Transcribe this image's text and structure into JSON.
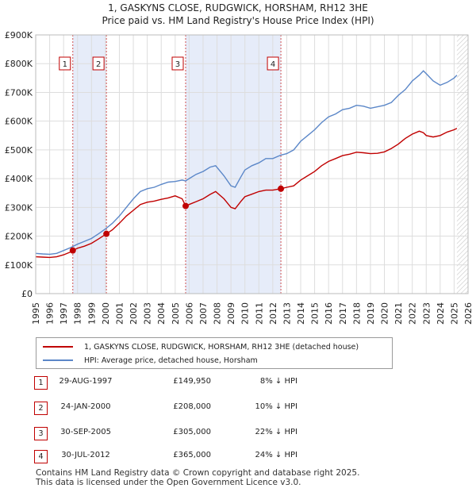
{
  "header": {
    "title_line1": "1, GASKYNS CLOSE, RUDGWICK, HORSHAM, RH12 3HE",
    "title_line2": "Price paid vs. HM Land Registry's House Price Index (HPI)"
  },
  "colors": {
    "price_paid": "#c00000",
    "hpi": "#5b87c8",
    "band": "#e6ecf9",
    "grid": "#dddddd"
  },
  "chart_data": {
    "type": "line",
    "title": "Price paid vs. HM Land Registry's House Price Index (HPI)",
    "xlabel": "",
    "ylabel": "",
    "xlim": [
      1995,
      2026
    ],
    "ylim": [
      0,
      900000
    ],
    "y_ticks": [
      {
        "value": 0,
        "label": "£0"
      },
      {
        "value": 100000,
        "label": "£100K"
      },
      {
        "value": 200000,
        "label": "£200K"
      },
      {
        "value": 300000,
        "label": "£300K"
      },
      {
        "value": 400000,
        "label": "£400K"
      },
      {
        "value": 500000,
        "label": "£500K"
      },
      {
        "value": 600000,
        "label": "£600K"
      },
      {
        "value": 700000,
        "label": "£700K"
      },
      {
        "value": 800000,
        "label": "£800K"
      },
      {
        "value": 900000,
        "label": "£900K"
      }
    ],
    "x_ticks": [
      "1995",
      "1996",
      "1997",
      "1998",
      "1999",
      "2000",
      "2001",
      "2002",
      "2003",
      "2004",
      "2005",
      "2006",
      "2007",
      "2008",
      "2009",
      "2010",
      "2011",
      "2012",
      "2013",
      "2014",
      "2015",
      "2016",
      "2017",
      "2018",
      "2019",
      "2020",
      "2021",
      "2022",
      "2023",
      "2024",
      "2025",
      "2026"
    ],
    "grid": true,
    "shaded_periods": [
      [
        1997.66,
        2000.07
      ],
      [
        2005.75,
        2012.58
      ]
    ],
    "future_hatch_from": 2025.2,
    "series": [
      {
        "name": "HPI: Average price, detached house, Horsham",
        "color": "#5b87c8",
        "x": [
          1995.0,
          1995.5,
          1996.0,
          1996.5,
          1997.0,
          1997.5,
          1998.0,
          1998.5,
          1999.0,
          1999.5,
          2000.0,
          2000.5,
          2001.0,
          2001.5,
          2002.0,
          2002.5,
          2003.0,
          2003.5,
          2004.0,
          2004.5,
          2005.0,
          2005.5,
          2005.75,
          2006.0,
          2006.5,
          2007.0,
          2007.5,
          2007.9,
          2008.5,
          2009.0,
          2009.3,
          2009.7,
          2010.0,
          2010.5,
          2011.0,
          2011.5,
          2012.0,
          2012.58,
          2013.0,
          2013.5,
          2014.0,
          2014.5,
          2015.0,
          2015.5,
          2016.0,
          2016.5,
          2017.0,
          2017.5,
          2018.0,
          2018.5,
          2019.0,
          2019.5,
          2020.0,
          2020.5,
          2021.0,
          2021.5,
          2022.0,
          2022.5,
          2022.8,
          2023.0,
          2023.5,
          2024.0,
          2024.5,
          2025.0,
          2025.2
        ],
        "values": [
          140000,
          138000,
          137000,
          140000,
          150000,
          160000,
          172000,
          182000,
          192000,
          208000,
          225000,
          245000,
          270000,
          300000,
          330000,
          355000,
          365000,
          370000,
          380000,
          388000,
          390000,
          395000,
          392000,
          400000,
          415000,
          425000,
          440000,
          445000,
          410000,
          375000,
          370000,
          405000,
          430000,
          445000,
          455000,
          470000,
          470000,
          482000,
          487000,
          500000,
          530000,
          550000,
          570000,
          595000,
          615000,
          625000,
          640000,
          645000,
          655000,
          652000,
          645000,
          650000,
          655000,
          665000,
          690000,
          710000,
          740000,
          760000,
          775000,
          765000,
          740000,
          725000,
          735000,
          750000,
          760000
        ]
      },
      {
        "name": "1, GASKYNS CLOSE, RUDGWICK, HORSHAM, RH12 3HE (detached house)",
        "color": "#c00000",
        "x": [
          1995.0,
          1995.5,
          1996.0,
          1996.5,
          1997.0,
          1997.5,
          1997.66,
          1998.0,
          1998.5,
          1999.0,
          1999.5,
          2000.07,
          2000.5,
          2001.0,
          2001.5,
          2002.0,
          2002.5,
          2003.0,
          2003.5,
          2004.0,
          2004.5,
          2005.0,
          2005.5,
          2005.75,
          2006.0,
          2006.5,
          2007.0,
          2007.5,
          2007.9,
          2008.5,
          2009.0,
          2009.3,
          2009.7,
          2010.0,
          2010.5,
          2011.0,
          2011.5,
          2012.0,
          2012.58,
          2013.0,
          2013.5,
          2014.0,
          2014.5,
          2015.0,
          2015.5,
          2016.0,
          2016.5,
          2017.0,
          2017.5,
          2018.0,
          2018.5,
          2019.0,
          2019.5,
          2020.0,
          2020.5,
          2021.0,
          2021.5,
          2022.0,
          2022.5,
          2022.8,
          2023.0,
          2023.5,
          2024.0,
          2024.5,
          2025.0,
          2025.2
        ],
        "values": [
          128000,
          127000,
          126000,
          128000,
          135000,
          145000,
          149950,
          158000,
          165000,
          175000,
          190000,
          208000,
          222000,
          245000,
          270000,
          290000,
          310000,
          318000,
          322000,
          328000,
          333000,
          340000,
          330000,
          305000,
          310000,
          320000,
          330000,
          345000,
          355000,
          330000,
          300000,
          295000,
          320000,
          337000,
          346000,
          355000,
          360000,
          360000,
          365000,
          370000,
          375000,
          395000,
          410000,
          425000,
          445000,
          460000,
          470000,
          480000,
          485000,
          492000,
          490000,
          487000,
          488000,
          493000,
          505000,
          520000,
          540000,
          555000,
          565000,
          560000,
          550000,
          545000,
          550000,
          562000,
          570000,
          575000
        ]
      }
    ],
    "annotations": [
      {
        "label": "1",
        "x": 1997.66,
        "y": 149950
      },
      {
        "label": "2",
        "x": 2000.07,
        "y": 208000
      },
      {
        "label": "3",
        "x": 2005.75,
        "y": 305000
      },
      {
        "label": "4",
        "x": 2012.58,
        "y": 365000
      }
    ]
  },
  "legend": {
    "items": [
      {
        "label": "1, GASKYNS CLOSE, RUDGWICK, HORSHAM, RH12 3HE (detached house)",
        "color": "#c00000"
      },
      {
        "label": "HPI: Average price, detached house, Horsham",
        "color": "#5b87c8"
      }
    ]
  },
  "sales": [
    {
      "num": "1",
      "date": "29-AUG-1997",
      "price": "£149,950",
      "hpi": "8% ↓ HPI"
    },
    {
      "num": "2",
      "date": "24-JAN-2000",
      "price": "£208,000",
      "hpi": "10% ↓ HPI"
    },
    {
      "num": "3",
      "date": "30-SEP-2005",
      "price": "£305,000",
      "hpi": "22% ↓ HPI"
    },
    {
      "num": "4",
      "date": "30-JUL-2012",
      "price": "£365,000",
      "hpi": "24% ↓ HPI"
    }
  ],
  "footer": {
    "line1": "Contains HM Land Registry data © Crown copyright and database right 2025.",
    "line2": "This data is licensed under the Open Government Licence v3.0."
  }
}
